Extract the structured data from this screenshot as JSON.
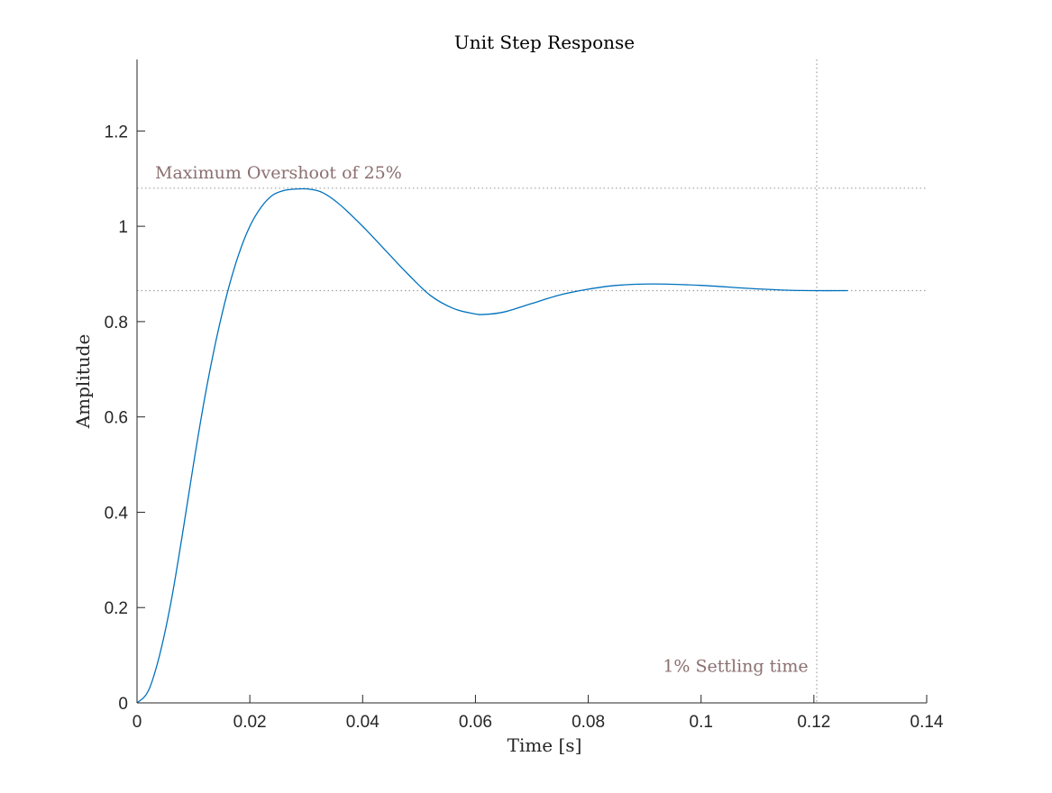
{
  "chart_data": {
    "type": "line",
    "title": "Unit Step Response",
    "xlabel": "Time [s]",
    "ylabel": "Amplitude",
    "xlim": [
      0,
      0.14
    ],
    "ylim": [
      0,
      1.35
    ],
    "xticks": [
      0,
      0.02,
      0.04,
      0.06,
      0.08,
      0.1,
      0.12,
      0.14
    ],
    "xtick_labels": [
      "0",
      "0.02",
      "0.04",
      "0.06",
      "0.08",
      "0.1",
      "0.12",
      "0.14"
    ],
    "yticks": [
      0,
      0.2,
      0.4,
      0.6,
      0.8,
      1,
      1.2
    ],
    "ytick_labels": [
      "0",
      "0.2",
      "0.4",
      "0.6",
      "0.8",
      "1",
      "1.2"
    ],
    "grid": false,
    "series": [
      {
        "color": "#0072bd",
        "x": [
          0,
          0.002,
          0.004,
          0.006,
          0.008,
          0.01,
          0.012,
          0.014,
          0.016,
          0.018,
          0.02,
          0.022,
          0.024,
          0.026,
          0.028,
          0.0305,
          0.033,
          0.036,
          0.04,
          0.044,
          0.048,
          0.052,
          0.056,
          0.0595,
          0.0615,
          0.065,
          0.07,
          0.075,
          0.08,
          0.085,
          0.0915,
          0.1,
          0.108,
          0.115,
          0.12,
          0.126
        ],
        "y": [
          0,
          0.025,
          0.1,
          0.21,
          0.35,
          0.5,
          0.64,
          0.76,
          0.86,
          0.94,
          1.0,
          1.04,
          1.065,
          1.075,
          1.078,
          1.078,
          1.07,
          1.045,
          1.0,
          0.95,
          0.9,
          0.855,
          0.828,
          0.817,
          0.815,
          0.82,
          0.838,
          0.856,
          0.868,
          0.876,
          0.879,
          0.876,
          0.87,
          0.866,
          0.865,
          0.865
        ]
      }
    ],
    "reference_lines": {
      "horizontal": [
        1.08,
        0.865
      ],
      "vertical": [
        0.1205
      ],
      "color": "#a0a0a0",
      "style": "dotted"
    },
    "annotations": [
      {
        "text": "Maximum Overshoot of 25%",
        "x": 0.0032,
        "y": 1.1
      },
      {
        "text": "1% Settling time",
        "x": 0.119,
        "y": 0.065
      }
    ],
    "annotation_color": "#8c6f6f"
  }
}
